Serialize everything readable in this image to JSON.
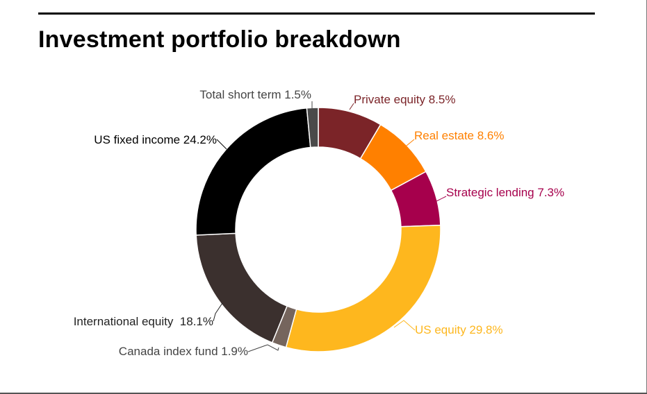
{
  "title": "Investment portfolio breakdown",
  "chart_data": {
    "type": "pie",
    "donut": true,
    "title": "Investment portfolio breakdown",
    "unit": "%",
    "slices": [
      {
        "name": "Private equity",
        "value": 8.5,
        "label": "Private equity 8.5%",
        "color": "#7b2428",
        "label_color": "#7b2428"
      },
      {
        "name": "Real estate",
        "value": 8.6,
        "label": "Real estate 8.6%",
        "color": "#ff8000",
        "label_color": "#ff8000"
      },
      {
        "name": "Strategic lending",
        "value": 7.3,
        "label": "Strategic lending 7.3%",
        "color": "#a6004c",
        "label_color": "#a6004c"
      },
      {
        "name": "US equity",
        "value": 29.8,
        "label": "US equity 29.8%",
        "color": "#feb71e",
        "label_color": "#feb71e"
      },
      {
        "name": "Canada index fund",
        "value": 1.9,
        "label": "Canada index fund 1.9%",
        "color": "#75655d",
        "label_color": "#444444"
      },
      {
        "name": "International equity",
        "value": 18.1,
        "label": "International equity  18.1%",
        "color": "#3b302e",
        "label_color": "#222222"
      },
      {
        "name": "US fixed income",
        "value": 24.2,
        "label": "US fixed income 24.2%",
        "color": "#000000",
        "label_color": "#000000"
      },
      {
        "name": "Total short term",
        "value": 1.5,
        "label": "Total short term 1.5%",
        "color": "#4a4a4a",
        "label_color": "#444444"
      }
    ]
  }
}
